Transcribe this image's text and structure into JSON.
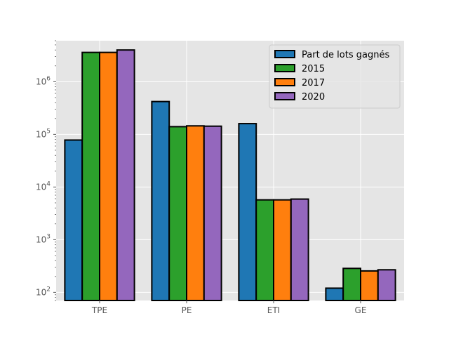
{
  "chart_data": {
    "type": "bar",
    "yscale": "log",
    "categories": [
      "TPE",
      "PE",
      "ETI",
      "GE"
    ],
    "series": [
      {
        "name": "Part de lots gagnés",
        "color": "#1f77b4",
        "values": [
          78000,
          420000,
          160000,
          120
        ]
      },
      {
        "name": "2015",
        "color": "#2ca02c",
        "values": [
          3600000,
          140000,
          5700,
          285
        ]
      },
      {
        "name": "2017",
        "color": "#ff7f0e",
        "values": [
          3600000,
          145000,
          5700,
          255
        ]
      },
      {
        "name": "2020",
        "color": "#9467bd",
        "values": [
          4000000,
          143000,
          5900,
          268
        ]
      }
    ],
    "title": "",
    "xlabel": "",
    "ylabel": "",
    "ylim": [
      70,
      6000000
    ],
    "yticks": [
      {
        "value": 100,
        "base": "10",
        "exp": "2"
      },
      {
        "value": 1000,
        "base": "10",
        "exp": "3"
      },
      {
        "value": 10000,
        "base": "10",
        "exp": "4"
      },
      {
        "value": 100000,
        "base": "10",
        "exp": "5"
      },
      {
        "value": 1000000,
        "base": "10",
        "exp": "6"
      }
    ],
    "grid": true,
    "legend_position": "top-right",
    "style": {
      "background": "#e5e5e5",
      "grid_color": "#ffffff",
      "edge_color": "#000000"
    }
  }
}
